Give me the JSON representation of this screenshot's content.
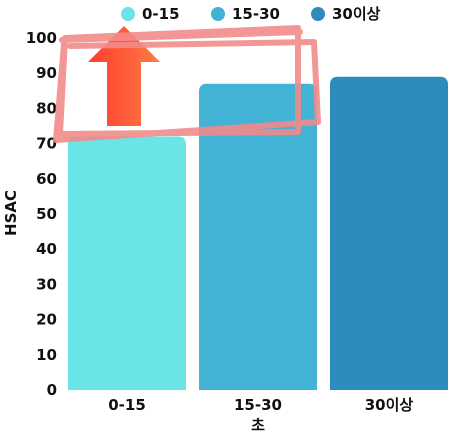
{
  "chart_data": {
    "type": "bar",
    "categories": [
      "0-15",
      "15-30",
      "30이상"
    ],
    "values": [
      72,
      87,
      89
    ],
    "xlabel": "초",
    "ylabel": "HSAC",
    "ylim": [
      0,
      100
    ],
    "yticks": [
      0,
      10,
      20,
      30,
      40,
      50,
      60,
      70,
      80,
      90,
      100
    ],
    "colors": [
      "#6ae4e6",
      "#42b3d5",
      "#2e8bbd"
    ],
    "legend": {
      "placement": "top",
      "items": [
        "0-15",
        "15-30",
        "30이상"
      ]
    },
    "grid": false
  },
  "annotations": {
    "arrow_color": "#ff5a3c",
    "highlight_color": "#f28b8b",
    "icons": [
      "up-arrow-icon",
      "scribble-highlight"
    ]
  }
}
